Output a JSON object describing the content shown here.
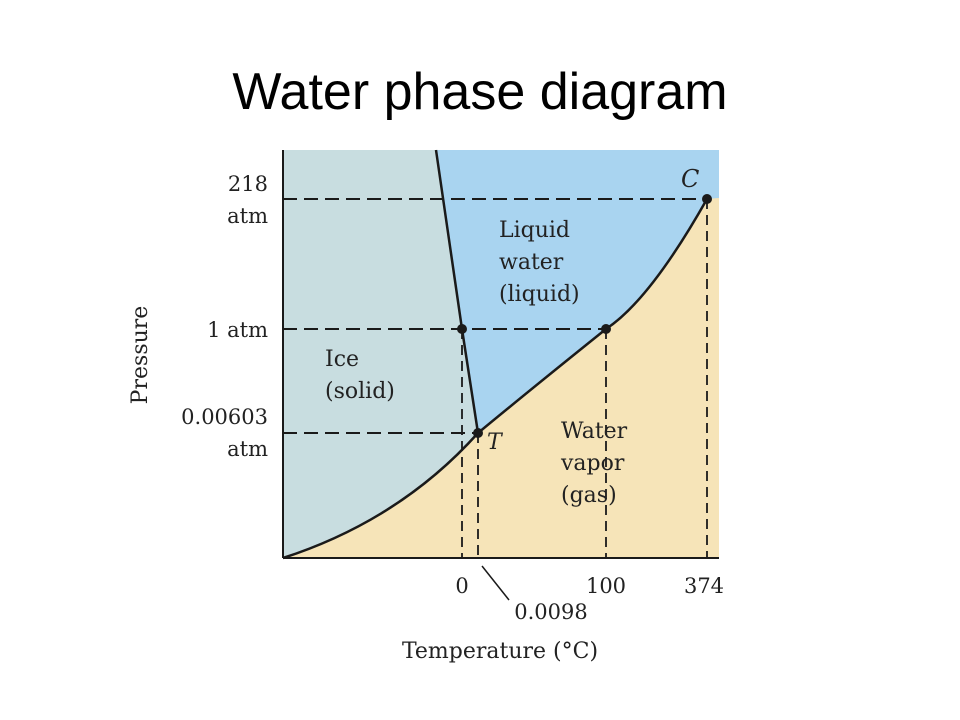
{
  "slide": {
    "title": "Water phase diagram"
  },
  "diagram": {
    "colors": {
      "solid": "#c8dde0",
      "liquid": "#a9d4f0",
      "gas": "#f6e4b8",
      "line": "#1a1a1a",
      "text": "#222222"
    },
    "regions": {
      "solid": [
        "Ice",
        "(solid)"
      ],
      "liquid": [
        "Liquid",
        "water",
        "(liquid)"
      ],
      "gas": [
        "Water",
        "vapor",
        "(gas)"
      ]
    },
    "points": {
      "critical": "C",
      "triple": "T"
    },
    "y_axis": {
      "label": "Pressure",
      "ticks": [
        {
          "lines": [
            "218",
            "atm"
          ]
        },
        {
          "lines": [
            "1 atm"
          ]
        },
        {
          "lines": [
            "0.00603",
            "atm"
          ]
        }
      ]
    },
    "x_axis": {
      "label": "Temperature (°C)",
      "ticks": [
        "0",
        "100",
        "374"
      ],
      "triple_temp": "0.0098"
    }
  }
}
